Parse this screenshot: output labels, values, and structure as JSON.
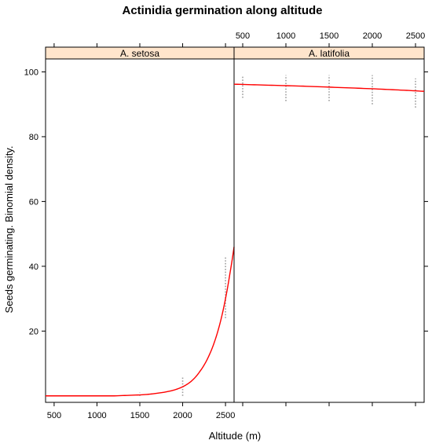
{
  "chart_data": {
    "type": "line",
    "title": "Actinidia germination along altitude",
    "xlabel": "Altitude (m)",
    "ylabel": "Seeds germinating. Binomial density.",
    "grid": false,
    "panels": [
      {
        "name": "A. setosa",
        "xlim": [
          400,
          2600
        ],
        "ylim": [
          -2,
          104
        ],
        "x_ticks": [
          500,
          1000,
          1500,
          2000,
          2500
        ],
        "x_tick_labels": [
          "500",
          "1000",
          "1500",
          "2000",
          "2500"
        ],
        "x_tick_labels_side": "bottom",
        "y_ticks": [
          20,
          40,
          60,
          80,
          100
        ],
        "y_tick_labels": [
          "20",
          "40",
          "60",
          "80",
          "100"
        ],
        "curve": {
          "color": "#ff0000",
          "x": [
            400,
            800,
            1200,
            1500,
            1700,
            1900,
            2000,
            2100,
            2200,
            2300,
            2400,
            2500,
            2550,
            2600
          ],
          "y": [
            0,
            0,
            0,
            0.3,
            0.8,
            1.8,
            2.8,
            4.5,
            7.5,
            12,
            19,
            30,
            37.5,
            46
          ]
        },
        "density_marks": {
          "color": "#9e9e9e",
          "x": [
            500,
            1000,
            1500,
            2000,
            2500
          ],
          "y_ranges": [
            [
              0,
              0
            ],
            [
              0,
              0
            ],
            [
              0,
              1
            ],
            [
              0,
              6
            ],
            [
              24,
              43
            ]
          ]
        }
      },
      {
        "name": "A. latifolia",
        "xlim": [
          400,
          2600
        ],
        "ylim": [
          -2,
          104
        ],
        "x_ticks": [
          500,
          1000,
          1500,
          2000,
          2500
        ],
        "x_tick_labels": [
          "500",
          "1000",
          "1500",
          "2000",
          "2500"
        ],
        "x_tick_labels_side": "top",
        "curve": {
          "color": "#ff0000",
          "x": [
            400,
            800,
            1200,
            1600,
            2000,
            2400,
            2600
          ],
          "y": [
            96.2,
            95.9,
            95.6,
            95.2,
            94.8,
            94.3,
            94.0
          ]
        },
        "density_marks": {
          "color": "#9e9e9e",
          "x": [
            500,
            1000,
            1500,
            2000,
            2500
          ],
          "y_ranges": [
            [
              92,
              99
            ],
            [
              91,
              99
            ],
            [
              91,
              99
            ],
            [
              90,
              99
            ],
            [
              89,
              98
            ]
          ]
        }
      }
    ],
    "strip_color": "#ffe5cc"
  }
}
